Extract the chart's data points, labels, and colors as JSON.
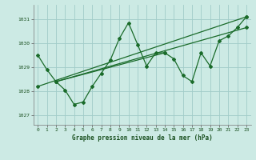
{
  "title": "Graphe pression niveau de la mer (hPa)",
  "background_color": "#cceae4",
  "grid_color": "#a0ccc8",
  "line_color": "#1a6b2a",
  "xlim": [
    -0.5,
    23.5
  ],
  "ylim": [
    1026.6,
    1031.6
  ],
  "xticks": [
    0,
    1,
    2,
    3,
    4,
    5,
    6,
    7,
    8,
    9,
    10,
    11,
    12,
    13,
    14,
    15,
    16,
    17,
    18,
    19,
    20,
    21,
    22,
    23
  ],
  "yticks": [
    1027,
    1028,
    1029,
    1030,
    1031
  ],
  "series": [
    {
      "x": [
        0,
        1,
        2,
        3,
        4,
        5,
        6,
        7,
        8,
        9,
        10,
        11,
        12,
        13,
        14,
        15,
        16,
        17,
        18,
        19,
        20,
        21,
        22,
        23
      ],
      "y": [
        1029.5,
        1028.9,
        1028.4,
        1028.05,
        1027.45,
        1027.55,
        1028.2,
        1028.75,
        1029.3,
        1030.2,
        1030.85,
        1029.95,
        1029.05,
        1029.6,
        1029.6,
        1029.35,
        1028.65,
        1028.4,
        1029.6,
        1029.05,
        1030.1,
        1030.3,
        1030.65,
        1031.1
      ]
    },
    {
      "x": [
        0,
        23
      ],
      "y": [
        1028.2,
        1031.1
      ]
    },
    {
      "x": [
        2,
        23
      ],
      "y": [
        1028.4,
        1030.65
      ]
    },
    {
      "x": [
        2,
        14
      ],
      "y": [
        1028.4,
        1029.6
      ]
    }
  ]
}
